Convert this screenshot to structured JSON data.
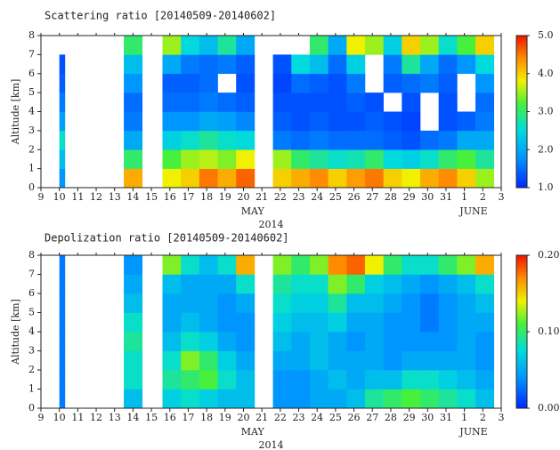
{
  "chart_data": [
    {
      "type": "heatmap",
      "title": "Scattering ratio [20140509-20140602]",
      "ylabel": "Altitude [km]",
      "xlim": [
        9,
        34
      ],
      "xticks": [
        9,
        10,
        11,
        12,
        13,
        14,
        15,
        16,
        17,
        18,
        19,
        20,
        21,
        22,
        23,
        24,
        25,
        26,
        27,
        28,
        29,
        30,
        31,
        {
          "value": 32,
          "label": "1"
        },
        {
          "value": 33,
          "label": "2"
        },
        {
          "value": 34,
          "label": "3"
        }
      ],
      "x_annotations": [
        {
          "value": 20.5,
          "label": "MAY"
        },
        {
          "value": 32.5,
          "label": "JUNE"
        }
      ],
      "xlabel": "2014",
      "ylim": [
        0,
        8
      ],
      "yticks": [
        0,
        1,
        2,
        3,
        4,
        5,
        6,
        7,
        8
      ],
      "x_bins": [
        10,
        10.3,
        13.5,
        14.5,
        15.6,
        16.6,
        17.6,
        18.6,
        19.6,
        20.6,
        21.6,
        22.6,
        23.6,
        24.6,
        25.6,
        26.6,
        27.6,
        28.6,
        29.6,
        30.6,
        31.6,
        32.6,
        33.6
      ],
      "y_bins": [
        0,
        1,
        2,
        3,
        4,
        5,
        6,
        7,
        8
      ],
      "zlim": [
        1,
        5
      ],
      "zticks": [
        {
          "value": 1,
          "label": "1.0"
        },
        {
          "value": 2,
          "label": "2.0"
        },
        {
          "value": 3,
          "label": "3.0"
        },
        {
          "value": 4,
          "label": "4.0"
        },
        {
          "value": 5,
          "label": "5.0"
        }
      ],
      "values": [
        [
          1.8,
          2.2,
          2.6,
          1.9,
          1.6,
          1.4,
          1.3,
          null
        ],
        [
          null,
          null,
          null,
          null,
          null,
          null,
          null,
          null
        ],
        [
          4.2,
          3.0,
          2.0,
          1.6,
          1.5,
          1.8,
          2.2,
          3.0
        ],
        [
          null,
          null,
          null,
          null,
          null,
          null,
          null,
          null
        ],
        [
          3.8,
          3.2,
          2.4,
          1.8,
          1.5,
          1.4,
          2.0,
          3.5
        ],
        [
          4.0,
          3.5,
          2.6,
          1.8,
          1.5,
          1.4,
          1.6,
          2.5
        ],
        [
          4.5,
          3.6,
          2.8,
          2.0,
          1.6,
          1.5,
          1.5,
          2.2
        ],
        [
          4.2,
          3.4,
          2.6,
          1.9,
          1.5,
          null,
          1.6,
          2.8
        ],
        [
          4.6,
          3.8,
          2.5,
          1.7,
          1.4,
          1.3,
          1.4,
          2.0
        ],
        [
          null,
          null,
          null,
          null,
          null,
          null,
          null,
          null
        ],
        [
          4.0,
          3.5,
          1.6,
          1.4,
          1.3,
          1.2,
          1.3,
          null
        ],
        [
          4.2,
          3.0,
          1.5,
          1.3,
          1.3,
          1.5,
          2.5,
          null
        ],
        [
          4.4,
          2.8,
          1.6,
          1.4,
          1.3,
          1.4,
          2.2,
          3.0
        ],
        [
          4.0,
          2.6,
          1.5,
          1.3,
          1.3,
          1.3,
          1.5,
          2.0
        ],
        [
          4.3,
          2.7,
          1.5,
          1.3,
          1.4,
          1.6,
          2.4,
          3.8
        ],
        [
          4.5,
          3.0,
          1.5,
          1.4,
          1.3,
          null,
          null,
          3.5
        ],
        [
          4.0,
          2.5,
          1.4,
          1.3,
          null,
          1.4,
          1.6,
          2.4
        ],
        [
          3.8,
          2.4,
          1.3,
          1.2,
          1.3,
          1.5,
          2.8,
          4.0
        ],
        [
          4.2,
          2.6,
          1.5,
          null,
          null,
          1.6,
          2.0,
          3.5
        ],
        [
          4.4,
          3.0,
          1.6,
          1.3,
          1.3,
          1.4,
          1.5,
          2.6
        ],
        [
          4.0,
          3.2,
          2.0,
          1.4,
          null,
          null,
          1.8,
          3.2
        ],
        [
          3.5,
          2.8,
          2.0,
          1.6,
          1.5,
          1.8,
          2.5,
          4.0
        ]
      ]
    },
    {
      "type": "heatmap",
      "title": "Depolization ratio [20140509-20140602]",
      "ylabel": "Altitude [km]",
      "xlim": [
        9,
        34
      ],
      "xticks": [
        9,
        10,
        11,
        12,
        13,
        14,
        15,
        16,
        17,
        18,
        19,
        20,
        21,
        22,
        23,
        24,
        25,
        26,
        27,
        28,
        29,
        30,
        31,
        {
          "value": 32,
          "label": "1"
        },
        {
          "value": 33,
          "label": "2"
        },
        {
          "value": 34,
          "label": "3"
        }
      ],
      "x_annotations": [
        {
          "value": 20.5,
          "label": "MAY"
        },
        {
          "value": 32.5,
          "label": "JUNE"
        }
      ],
      "xlabel": "2014",
      "ylim": [
        0,
        8
      ],
      "yticks": [
        0,
        1,
        2,
        3,
        4,
        5,
        6,
        7,
        8
      ],
      "x_bins": [
        10,
        10.3,
        13.5,
        14.5,
        15.6,
        16.6,
        17.6,
        18.6,
        19.6,
        20.6,
        21.6,
        22.6,
        23.6,
        24.6,
        25.6,
        26.6,
        27.6,
        28.6,
        29.6,
        30.6,
        31.6,
        32.6,
        33.6
      ],
      "y_bins": [
        0,
        1,
        2,
        3,
        4,
        5,
        6,
        7,
        8
      ],
      "zlim": [
        0,
        0.2
      ],
      "zticks": [
        {
          "value": 0,
          "label": "0.00"
        },
        {
          "value": 0.1,
          "label": "0.10"
        },
        {
          "value": 0.2,
          "label": "0.20"
        }
      ],
      "values": [
        [
          0.03,
          0.03,
          0.03,
          0.03,
          0.03,
          0.03,
          0.03,
          0.03
        ],
        [
          null,
          null,
          null,
          null,
          null,
          null,
          null,
          null
        ],
        [
          0.06,
          0.08,
          0.08,
          0.09,
          0.08,
          0.06,
          0.05,
          0.04
        ],
        [
          null,
          null,
          null,
          null,
          null,
          null,
          null,
          null
        ],
        [
          0.07,
          0.09,
          0.08,
          0.06,
          0.05,
          0.05,
          0.06,
          0.12
        ],
        [
          0.08,
          0.1,
          0.12,
          0.08,
          0.06,
          0.05,
          0.05,
          0.08
        ],
        [
          0.07,
          0.11,
          0.1,
          0.07,
          0.05,
          0.05,
          0.05,
          0.06
        ],
        [
          0.06,
          0.08,
          0.07,
          0.05,
          0.04,
          0.04,
          0.05,
          0.08
        ],
        [
          0.06,
          0.06,
          0.05,
          0.04,
          0.04,
          0.05,
          0.08,
          0.16
        ],
        [
          null,
          null,
          null,
          null,
          null,
          null,
          null,
          null
        ],
        [
          0.04,
          0.04,
          0.05,
          0.06,
          0.07,
          0.08,
          0.09,
          0.12
        ],
        [
          0.04,
          0.04,
          0.05,
          0.05,
          0.06,
          0.07,
          0.08,
          0.1
        ],
        [
          0.05,
          0.05,
          0.06,
          0.06,
          0.06,
          0.07,
          0.08,
          0.12
        ],
        [
          0.05,
          0.06,
          0.05,
          0.05,
          0.07,
          0.09,
          0.12,
          0.17
        ],
        [
          0.06,
          0.05,
          0.05,
          0.04,
          0.05,
          0.06,
          0.1,
          0.18
        ],
        [
          0.09,
          0.06,
          0.05,
          0.05,
          0.05,
          0.06,
          0.07,
          0.14
        ],
        [
          0.1,
          0.06,
          0.04,
          0.04,
          0.04,
          0.05,
          0.06,
          0.1
        ],
        [
          0.11,
          0.08,
          0.05,
          0.04,
          0.04,
          0.04,
          0.05,
          0.08
        ],
        [
          0.1,
          0.08,
          0.05,
          0.04,
          0.03,
          0.03,
          0.04,
          0.08
        ],
        [
          0.09,
          0.07,
          0.05,
          0.04,
          0.04,
          0.04,
          0.05,
          0.1
        ],
        [
          0.08,
          0.06,
          0.05,
          0.05,
          0.05,
          0.05,
          0.06,
          0.12
        ],
        [
          0.06,
          0.05,
          0.04,
          0.04,
          0.05,
          0.06,
          0.08,
          0.16
        ]
      ]
    }
  ]
}
